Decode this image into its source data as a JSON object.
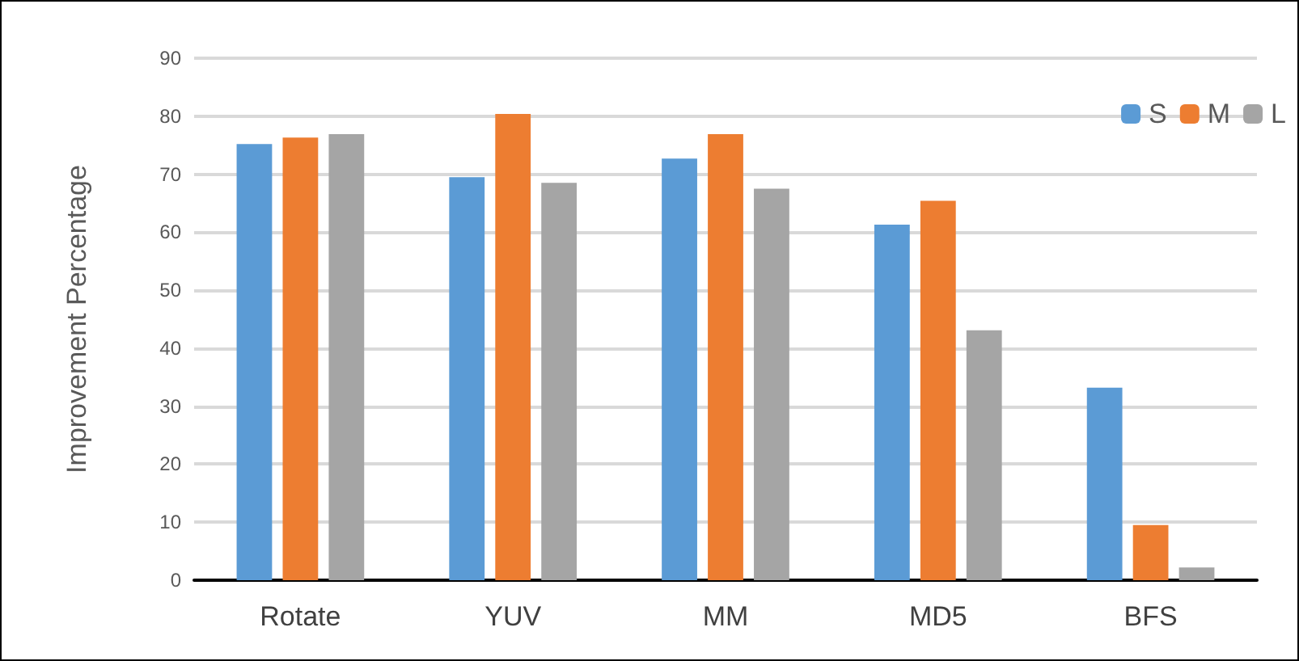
{
  "chart_data": {
    "type": "bar",
    "ylabel": "Improvement Percentage",
    "categories": [
      "Rotate",
      "YUV",
      "MM",
      "MD5",
      "BFS"
    ],
    "series": [
      {
        "name": "S",
        "color": "#5b9bd5",
        "values": [
          75.2,
          69.5,
          72.7,
          61.3,
          33.2
        ]
      },
      {
        "name": "M",
        "color": "#ed7d31",
        "values": [
          76.3,
          80.4,
          76.9,
          65.4,
          9.5
        ]
      },
      {
        "name": "L",
        "color": "#a5a5a5",
        "values": [
          76.9,
          68.5,
          67.5,
          43.1,
          2.2
        ]
      }
    ],
    "ylim": [
      0,
      90
    ],
    "yticks": [
      0,
      10,
      20,
      30,
      40,
      50,
      60,
      70,
      80,
      90
    ],
    "grid": "y",
    "legend": "top right"
  }
}
